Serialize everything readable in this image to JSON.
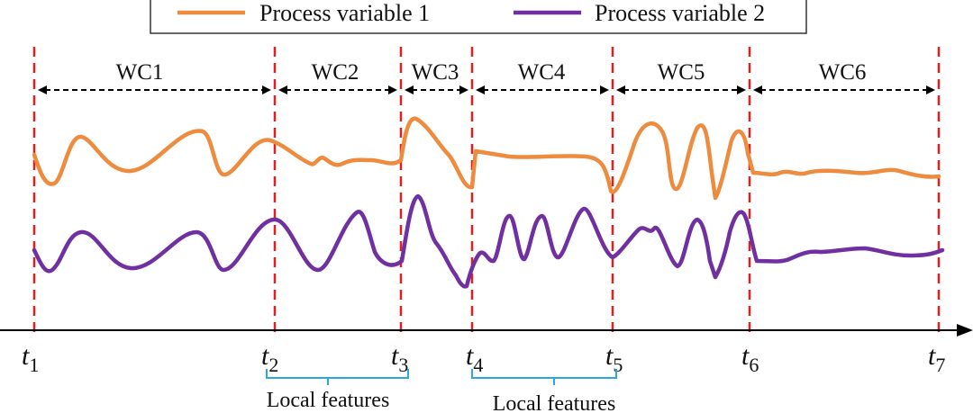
{
  "legend": {
    "items": [
      {
        "label": "Process variable 1",
        "color": "#ED8B3E"
      },
      {
        "label": "Process variable 2",
        "color": "#7030A0"
      }
    ]
  },
  "conditions": [
    "WC1",
    "WC2",
    "WC3",
    "WC4",
    "WC5",
    "WC6"
  ],
  "time_points": [
    {
      "base": "t",
      "sub": "1"
    },
    {
      "base": "t",
      "sub": "2"
    },
    {
      "base": "t",
      "sub": "3"
    },
    {
      "base": "t",
      "sub": "4"
    },
    {
      "base": "t",
      "sub": "5"
    },
    {
      "base": "t",
      "sub": "6"
    },
    {
      "base": "t",
      "sub": "7"
    }
  ],
  "local_features": [
    {
      "label": "Local features",
      "from": "t2",
      "to": "t3"
    },
    {
      "label": "Local features",
      "from": "t4",
      "to": "t5"
    }
  ],
  "colors": {
    "boundary": "#E0201E",
    "arrow": "#000000",
    "brace": "#2BA8E0",
    "axis": "#000000"
  }
}
